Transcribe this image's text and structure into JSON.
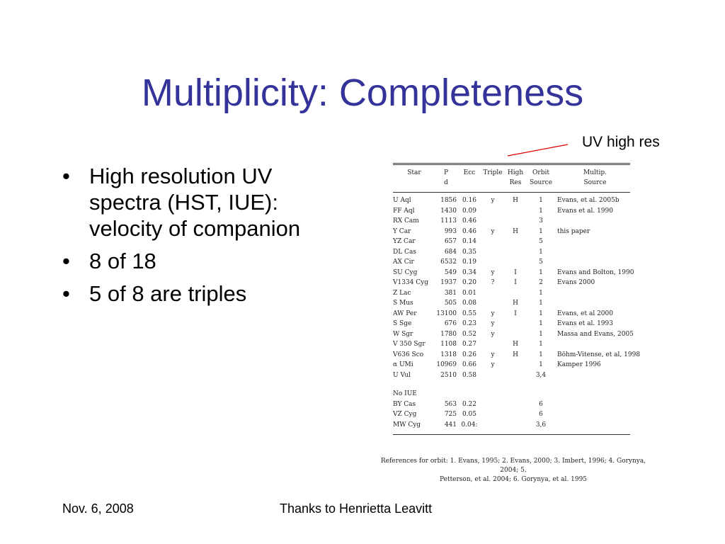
{
  "slide": {
    "title": "Multiplicity: Completeness",
    "annotation": "UV high res",
    "bullets": [
      "High resolution UV spectra (HST, IUE): velocity of companion",
      "8 of 18",
      "5 of 8 are triples"
    ],
    "footer_date": "Nov. 6, 2008",
    "footer_credit": "Thanks to Henrietta Leavitt",
    "colors": {
      "title": "#333399",
      "pointer": "#dd0000"
    }
  },
  "table": {
    "headers": {
      "star": "Star",
      "period_line1": "P",
      "period_line2": "d",
      "ecc": "Ecc",
      "triple": "Triple",
      "highres_line1": "High",
      "highres_line2": "Res",
      "orbit_line1": "Orbit",
      "orbit_line2": "Source",
      "multip_line1": "Multip.",
      "multip_line2": "Source"
    },
    "rows": [
      [
        "U Aql",
        "1856",
        "0.16",
        "y",
        "H",
        "1",
        "Evans, et al. 2005b"
      ],
      [
        "FF Aql",
        "1430",
        "0.09",
        "",
        "",
        "1",
        "Evans et al. 1990"
      ],
      [
        "RX Cam",
        "1113",
        "0.46",
        "",
        "",
        "3",
        ""
      ],
      [
        "Y Car",
        "993",
        "0.46",
        "y",
        "H",
        "1",
        "this paper"
      ],
      [
        "YZ Car",
        "657",
        "0.14",
        "",
        "",
        "5",
        ""
      ],
      [
        "DL Cas",
        "684",
        "0.35",
        "",
        "",
        "1",
        ""
      ],
      [
        "AX Cir",
        "6532",
        "0.19",
        "",
        "",
        "5",
        ""
      ],
      [
        "SU Cyg",
        "549",
        "0.34",
        "y",
        "I",
        "1",
        "Evans and Bolton, 1990"
      ],
      [
        "V1334 Cyg",
        "1937",
        "0.20",
        "?",
        "I",
        "2",
        "Evans 2000"
      ],
      [
        "Z Lac",
        "381",
        "0.01",
        "",
        "",
        "1",
        ""
      ],
      [
        "S Mus",
        "505",
        "0.08",
        "",
        "H",
        "1",
        ""
      ],
      [
        "AW Per",
        "13100",
        "0.55",
        "y",
        "I",
        "1",
        "Evans, et al 2000"
      ],
      [
        "S Sge",
        "676",
        "0.23",
        "y",
        "",
        "1",
        "Evans et al. 1993"
      ],
      [
        "W Sgr",
        "1780",
        "0.52",
        "y",
        "",
        "1",
        "Massa and Evans, 2005"
      ],
      [
        "V 350 Sgr",
        "1108",
        "0.27",
        "",
        "H",
        "1",
        ""
      ],
      [
        "V636 Sco",
        "1318",
        "0.26",
        "y",
        "H",
        "1",
        "Böhm-Vitense, et al, 1998"
      ],
      [
        "α UMi",
        "10969",
        "0.66",
        "y",
        "",
        "1",
        "Kamper 1996"
      ],
      [
        "U Vul",
        "2510",
        "0.58",
        "",
        "",
        "3,4",
        ""
      ]
    ],
    "no_iue_label": "No IUE",
    "no_iue_rows": [
      [
        "BY Cas",
        "563",
        "0.22",
        "",
        "",
        "6",
        ""
      ],
      [
        "VZ Cyg",
        "725",
        "0.05",
        "",
        "",
        "6",
        ""
      ],
      [
        "MW Cyg",
        "441",
        "0.04:",
        "",
        "",
        "3,6",
        ""
      ]
    ],
    "references_line1": "References for orbit: 1. Evans, 1995; 2. Evans, 2000; 3. Imbert, 1996; 4. Gorynya, 2004; 5.",
    "references_line2": "Petterson, et al. 2004; 6. Gorynya, et al. 1995"
  }
}
